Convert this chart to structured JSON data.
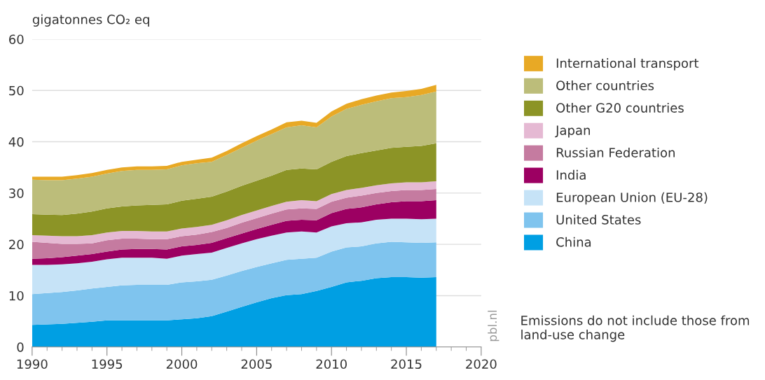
{
  "chart_data": {
    "type": "area",
    "stacked": true,
    "ylabel": "gigatonnes CO₂ eq",
    "x": [
      1990,
      1991,
      1992,
      1993,
      1994,
      1995,
      1996,
      1997,
      1998,
      1999,
      2000,
      2001,
      2002,
      2003,
      2004,
      2005,
      2006,
      2007,
      2008,
      2009,
      2010,
      2011,
      2012,
      2013,
      2014,
      2015,
      2016,
      2017
    ],
    "xlim": [
      1990,
      2020
    ],
    "xticks": [
      1990,
      1995,
      2000,
      2005,
      2010,
      2015,
      2020
    ],
    "ylim": [
      0,
      60
    ],
    "yticks": [
      0,
      10,
      20,
      30,
      40,
      50,
      60
    ],
    "grid": "y",
    "legend": "right",
    "series": [
      {
        "name": "China",
        "color": "#009fe3",
        "values": [
          4.3,
          4.4,
          4.5,
          4.7,
          4.9,
          5.2,
          5.2,
          5.2,
          5.2,
          5.2,
          5.4,
          5.6,
          6.0,
          6.9,
          7.8,
          8.7,
          9.5,
          10.1,
          10.3,
          10.9,
          11.7,
          12.6,
          12.9,
          13.4,
          13.6,
          13.6,
          13.5,
          13.6
        ]
      },
      {
        "name": "United States",
        "color": "#7fc4ee",
        "values": [
          6.0,
          6.1,
          6.2,
          6.3,
          6.5,
          6.5,
          6.8,
          6.9,
          6.9,
          6.9,
          7.2,
          7.2,
          7.1,
          7.0,
          7.0,
          6.9,
          6.8,
          6.9,
          6.9,
          6.5,
          6.9,
          6.8,
          6.7,
          6.8,
          6.9,
          6.8,
          6.8,
          6.8
        ]
      },
      {
        "name": "European Union (EU-28)",
        "color": "#c6e3f7",
        "values": [
          5.7,
          5.5,
          5.4,
          5.3,
          5.2,
          5.4,
          5.4,
          5.3,
          5.3,
          5.1,
          5.2,
          5.3,
          5.3,
          5.4,
          5.4,
          5.4,
          5.4,
          5.3,
          5.3,
          4.9,
          4.9,
          4.7,
          4.7,
          4.6,
          4.5,
          4.6,
          4.6,
          4.6
        ]
      },
      {
        "name": "India",
        "color": "#9c0062",
        "values": [
          1.2,
          1.3,
          1.4,
          1.5,
          1.5,
          1.5,
          1.6,
          1.7,
          1.7,
          1.8,
          1.8,
          1.8,
          1.9,
          1.9,
          1.9,
          2.0,
          2.1,
          2.3,
          2.3,
          2.4,
          2.6,
          2.8,
          2.9,
          3.0,
          3.2,
          3.4,
          3.5,
          3.6
        ]
      },
      {
        "name": "Russian Federation",
        "color": "#c57ba0",
        "values": [
          3.3,
          3.0,
          2.6,
          2.3,
          2.1,
          2.2,
          2.1,
          2.0,
          1.9,
          2.0,
          2.0,
          2.0,
          2.1,
          2.0,
          2.1,
          2.1,
          2.2,
          2.2,
          2.2,
          2.2,
          2.2,
          2.2,
          2.3,
          2.2,
          2.2,
          2.2,
          2.2,
          2.2
        ]
      },
      {
        "name": "Japan",
        "color": "#e5b9d3",
        "values": [
          1.3,
          1.4,
          1.5,
          1.5,
          1.6,
          1.5,
          1.5,
          1.5,
          1.5,
          1.5,
          1.5,
          1.5,
          1.4,
          1.5,
          1.5,
          1.5,
          1.5,
          1.5,
          1.6,
          1.5,
          1.5,
          1.5,
          1.5,
          1.5,
          1.5,
          1.5,
          1.5,
          1.5
        ]
      },
      {
        "name": "Other G20 countries",
        "color": "#8c9426",
        "values": [
          4.1,
          4.1,
          4.1,
          4.4,
          4.6,
          4.7,
          4.8,
          5.0,
          5.2,
          5.3,
          5.4,
          5.5,
          5.5,
          5.6,
          5.7,
          5.8,
          5.9,
          6.2,
          6.2,
          6.2,
          6.3,
          6.6,
          6.8,
          6.8,
          6.9,
          6.9,
          7.1,
          7.4
        ]
      },
      {
        "name": "Other countries",
        "color": "#bcbd7a",
        "values": [
          6.7,
          6.7,
          6.8,
          6.8,
          6.8,
          6.8,
          6.9,
          6.9,
          6.8,
          6.8,
          6.9,
          6.9,
          6.8,
          7.1,
          7.4,
          7.8,
          8.1,
          8.3,
          8.4,
          8.2,
          8.8,
          9.2,
          9.4,
          9.6,
          9.7,
          9.7,
          9.9,
          10.1
        ]
      },
      {
        "name": "International transport",
        "color": "#e8a925",
        "values": [
          0.6,
          0.7,
          0.7,
          0.7,
          0.7,
          0.7,
          0.7,
          0.7,
          0.7,
          0.7,
          0.7,
          0.7,
          0.8,
          0.8,
          0.9,
          0.9,
          0.9,
          1.0,
          0.9,
          0.9,
          1.0,
          1.0,
          1.1,
          1.1,
          1.1,
          1.2,
          1.2,
          1.3
        ]
      }
    ],
    "annotations": [
      "pbl.nl",
      "Emissions do not include those from land-use change"
    ]
  }
}
